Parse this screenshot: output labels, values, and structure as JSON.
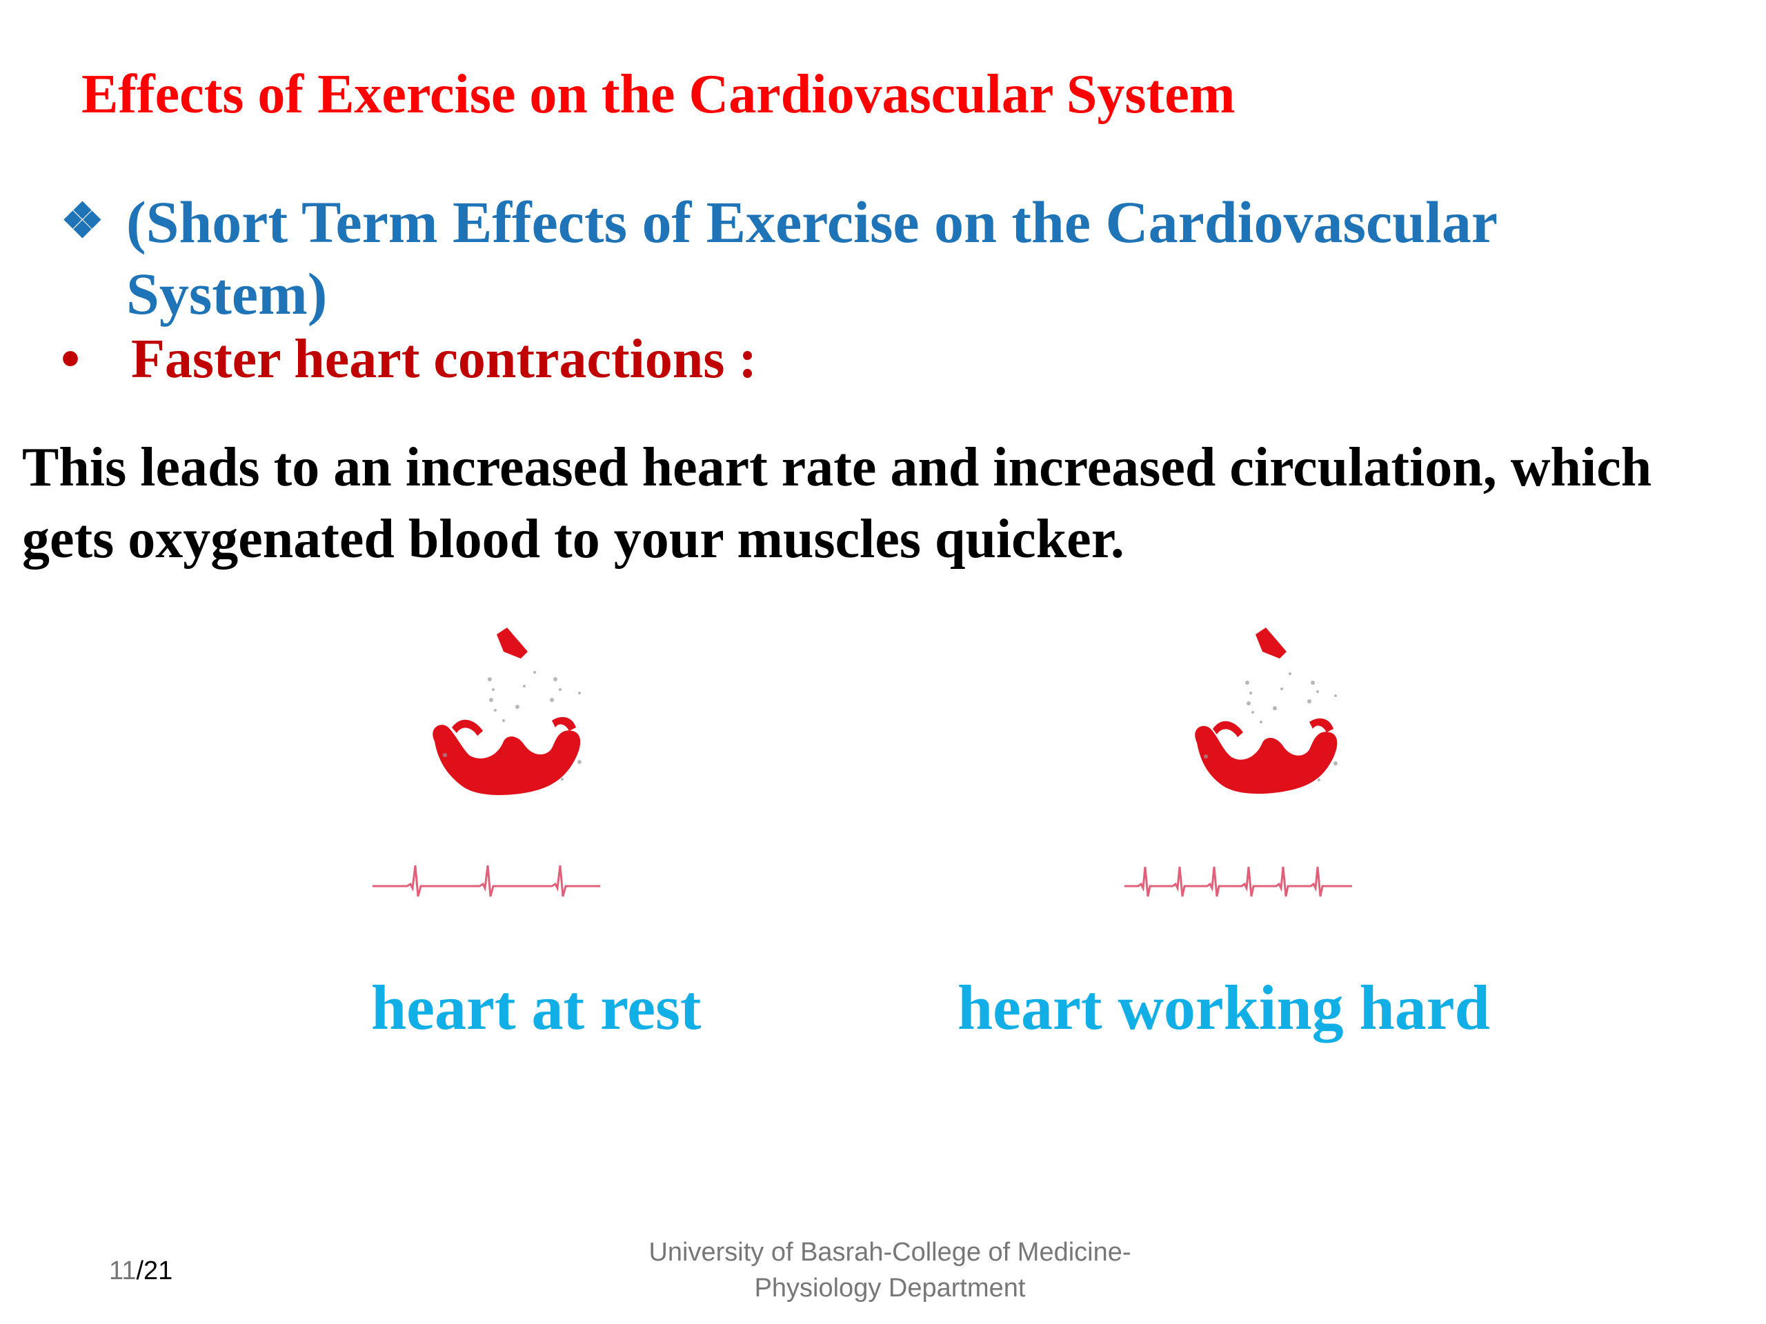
{
  "slide": {
    "title": "Effects of Exercise on the Cardiovascular System",
    "sub_bullet": {
      "glyph": "❖",
      "text": "(Short Term Effects of Exercise on the Cardiovascular System)"
    },
    "red_bullet": {
      "glyph": "•",
      "text": "Faster heart contractions :"
    },
    "body": "This leads to an increased heart rate and increased circulation, which gets oxygenated blood to your muscles quicker.",
    "figures": [
      {
        "caption": "heart at rest",
        "icon": "heart-echo-icon",
        "ecg_beats": 3
      },
      {
        "caption": "heart working hard",
        "icon": "heart-echo-icon",
        "ecg_beats": 6
      }
    ],
    "colors": {
      "title": "#ff0000",
      "sub_bullet": "#1f73b7",
      "red_bullet": "#c00000",
      "caption": "#12aee6",
      "ecg": "#e0607a",
      "heart": "#e0101a"
    }
  },
  "footer": {
    "page_current": "11",
    "page_total": "/21",
    "line1": "University of Basrah-College of Medicine-",
    "line2": "Physiology Department"
  }
}
